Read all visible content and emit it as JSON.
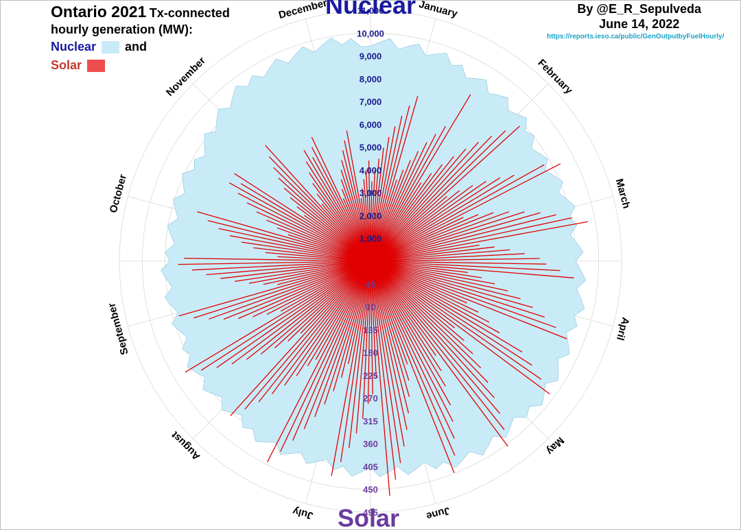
{
  "title": {
    "main": "Ontario 2021",
    "main_suffix": "Tx-connected",
    "line2": "hourly generation (MW):"
  },
  "legend": {
    "nuclear_label": "Nuclear",
    "and_label": "and",
    "solar_label": "Solar",
    "nuclear_color": "#c9ebf7",
    "solar_color": "#ee4d4d"
  },
  "credit": {
    "author": "By @E_R_Sepulveda",
    "date": "June 14, 2022",
    "url": "https://reports.ieso.ca/public/GenOutputbyFuelHourly/"
  },
  "chart_data": {
    "type": "polar",
    "axis_titles": {
      "top": "Nuclear",
      "bottom": "Solar"
    },
    "months": [
      "January",
      "February",
      "March",
      "April",
      "May",
      "June",
      "July",
      "August",
      "September",
      "October",
      "November",
      "December"
    ],
    "nuclear_radial_ticks": [
      "1,000",
      "2,000",
      "3,000",
      "4,000",
      "5,000",
      "6,000",
      "7,000",
      "8,000",
      "9,000",
      "10,000",
      "11,000"
    ],
    "nuclear_range": [
      0,
      11000
    ],
    "solar_radial_ticks": [
      "45",
      "90",
      "135",
      "180",
      "225",
      "270",
      "315",
      "360",
      "405",
      "450",
      "495"
    ],
    "solar_range": [
      0,
      495
    ],
    "series": [
      {
        "name": "Nuclear",
        "unit": "MW",
        "monthly_mw": [
          9700,
          9300,
          8800,
          9200,
          9500,
          9600,
          9200,
          9100,
          9000,
          8900,
          8800,
          9600
        ],
        "sample_points_per_month": 12
      },
      {
        "name": "Solar",
        "unit": "MW",
        "monthly_peak_mw": [
          350,
          410,
          450,
          430,
          470,
          480,
          460,
          440,
          420,
          380,
          330,
          280
        ],
        "sample_points_per_month": 16
      }
    ],
    "colors": {
      "nuclear_fill": "#c9ebf7",
      "nuclear_edge": "#9ccde3",
      "solar": "#e00000",
      "grid": "#d9d9d9",
      "nuclear_ticks": "#1a1a8c",
      "solar_ticks": "#6b3b9c",
      "nuclear_title": "#1a1aa0",
      "solar_title": "#6b3b9c"
    }
  }
}
